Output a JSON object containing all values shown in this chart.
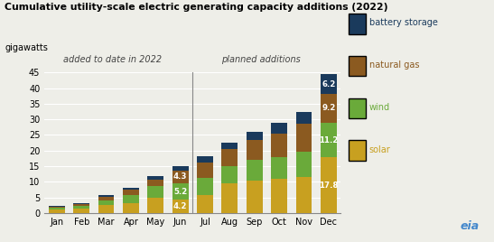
{
  "months": [
    "Jan",
    "Feb",
    "Mar",
    "Apr",
    "May",
    "Jun",
    "Jul",
    "Aug",
    "Sep",
    "Oct",
    "Nov",
    "Dec"
  ],
  "solar": [
    1.2,
    1.5,
    2.5,
    3.2,
    4.8,
    4.2,
    5.8,
    9.5,
    10.5,
    11.0,
    11.5,
    17.8
  ],
  "wind": [
    0.5,
    0.7,
    1.5,
    2.5,
    3.8,
    5.2,
    5.5,
    5.5,
    6.5,
    7.0,
    8.0,
    11.2
  ],
  "natural_gas": [
    0.4,
    0.6,
    1.2,
    1.8,
    2.2,
    4.3,
    5.0,
    5.5,
    6.5,
    7.5,
    9.0,
    9.2
  ],
  "battery": [
    0.3,
    0.4,
    0.6,
    0.7,
    1.0,
    1.3,
    2.0,
    2.0,
    2.5,
    3.5,
    4.0,
    6.2
  ],
  "colors": {
    "solar": "#c8a020",
    "wind": "#6aaa3a",
    "natural_gas": "#8b5a20",
    "battery": "#1a3a5c"
  },
  "legend_colors": [
    "#1a3a5c",
    "#8b5a20",
    "#6aaa3a",
    "#c8a020"
  ],
  "legend_labels": [
    "battery storage",
    "natural gas",
    "wind",
    "solar"
  ],
  "legend_text_colors": [
    "#1a3a5c",
    "#8b5a20",
    "#6aaa3a",
    "#c8a020"
  ],
  "divider_after_idx": 5,
  "title": "Cumulative utility-scale electric generating capacity additions (2022)",
  "ylabel": "gigawatts",
  "ylim": [
    0,
    45
  ],
  "yticks": [
    0,
    5,
    10,
    15,
    20,
    25,
    30,
    35,
    40,
    45
  ],
  "added_label": "added to date in 2022",
  "planned_label": "planned additions",
  "annotations_jun": [
    {
      "segment": "natural_gas",
      "text": "4.3"
    },
    {
      "segment": "wind",
      "text": "5.2"
    },
    {
      "segment": "solar",
      "text": "4.2"
    }
  ],
  "annotations_dec": [
    {
      "segment": "battery",
      "text": "6.2"
    },
    {
      "segment": "natural_gas",
      "text": "9.2"
    },
    {
      "segment": "wind",
      "text": "11.2"
    },
    {
      "segment": "solar",
      "text": "17.8"
    }
  ],
  "bg_color": "#eeeee8",
  "grid_color": "#ffffff",
  "divider_color": "#888888"
}
